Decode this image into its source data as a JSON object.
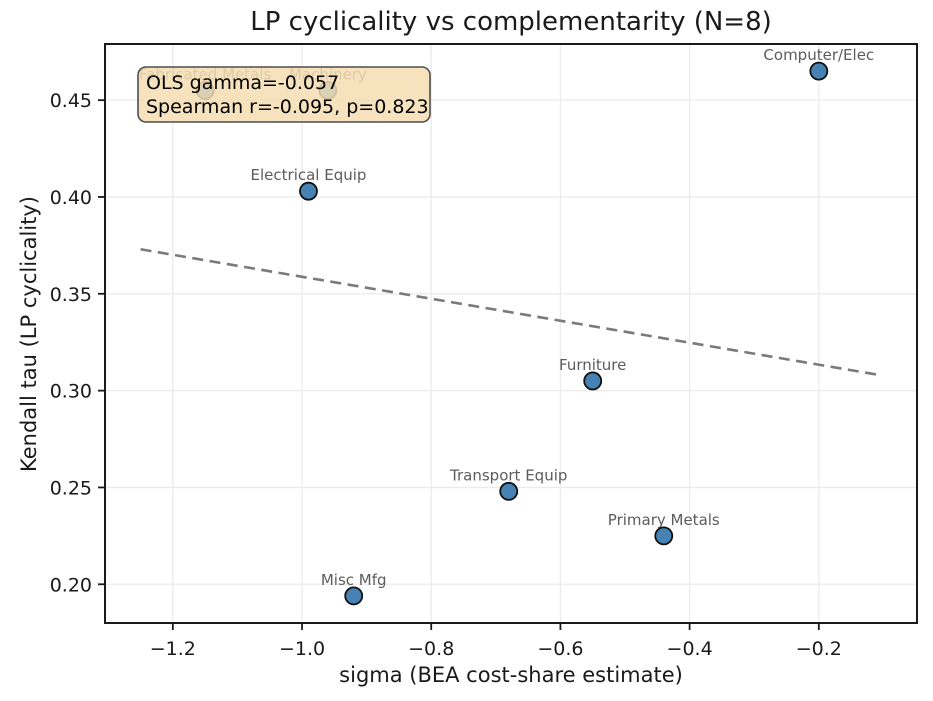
{
  "chart_data": {
    "type": "scatter",
    "title": "LP cyclicality vs complementarity (N=8)",
    "xlabel": "sigma (BEA cost-share estimate)",
    "ylabel": "Kendall tau (LP cyclicality)",
    "xlim": [
      -1.305,
      -0.048
    ],
    "ylim": [
      0.18,
      0.479
    ],
    "grid": true,
    "legend": "none",
    "x_ticks": [
      {
        "value": -1.2,
        "label": "−1.2"
      },
      {
        "value": -1.0,
        "label": "−1.0"
      },
      {
        "value": -0.8,
        "label": "−0.8"
      },
      {
        "value": -0.6,
        "label": "−0.6"
      },
      {
        "value": -0.4,
        "label": "−0.4"
      },
      {
        "value": -0.2,
        "label": "−0.2"
      }
    ],
    "y_ticks": [
      {
        "value": 0.45,
        "label": "0.45"
      },
      {
        "value": 0.4,
        "label": "0.40"
      },
      {
        "value": 0.35,
        "label": "0.35"
      },
      {
        "value": 0.3,
        "label": "0.30"
      },
      {
        "value": 0.25,
        "label": "0.25"
      },
      {
        "value": 0.2,
        "label": "0.20"
      }
    ],
    "points": [
      {
        "label": "Fabricated Metals",
        "sigma": -1.15,
        "tau": 0.455
      },
      {
        "label": "Machinery",
        "sigma": -0.96,
        "tau": 0.455
      },
      {
        "label": "Electrical Equip",
        "sigma": -0.99,
        "tau": 0.403
      },
      {
        "label": "Computer/Elec",
        "sigma": -0.2,
        "tau": 0.465
      },
      {
        "label": "Furniture",
        "sigma": -0.55,
        "tau": 0.305
      },
      {
        "label": "Transport Equip",
        "sigma": -0.68,
        "tau": 0.248
      },
      {
        "label": "Primary Metals",
        "sigma": -0.44,
        "tau": 0.225
      },
      {
        "label": "Misc Mfg",
        "sigma": -0.92,
        "tau": 0.194
      }
    ],
    "trend_line": {
      "style": "dashed",
      "x": [
        -1.25,
        -0.105
      ],
      "y": [
        0.373,
        0.308
      ],
      "ols_gamma": -0.057
    },
    "stats": {
      "ols_gamma": -0.057,
      "spearman_r": -0.095,
      "spearman_p": 0.823
    },
    "annotation": {
      "line1": "OLS gamma=-0.057",
      "line2": "Spearman r=-0.095, p=0.823"
    },
    "colors": {
      "point_fill": "#4682b4",
      "point_edge": "#101010",
      "trend": "#7a7a7a",
      "grid": "#ebebeb",
      "spine": "#1a1a1a",
      "tick_text": "#1a1a1a",
      "point_label": "#5c5c5c",
      "annotation_bg": "#f5deb3",
      "annotation_border": "#4d4d4d",
      "annotation_text": "#000000",
      "background": "#ffffff"
    }
  }
}
